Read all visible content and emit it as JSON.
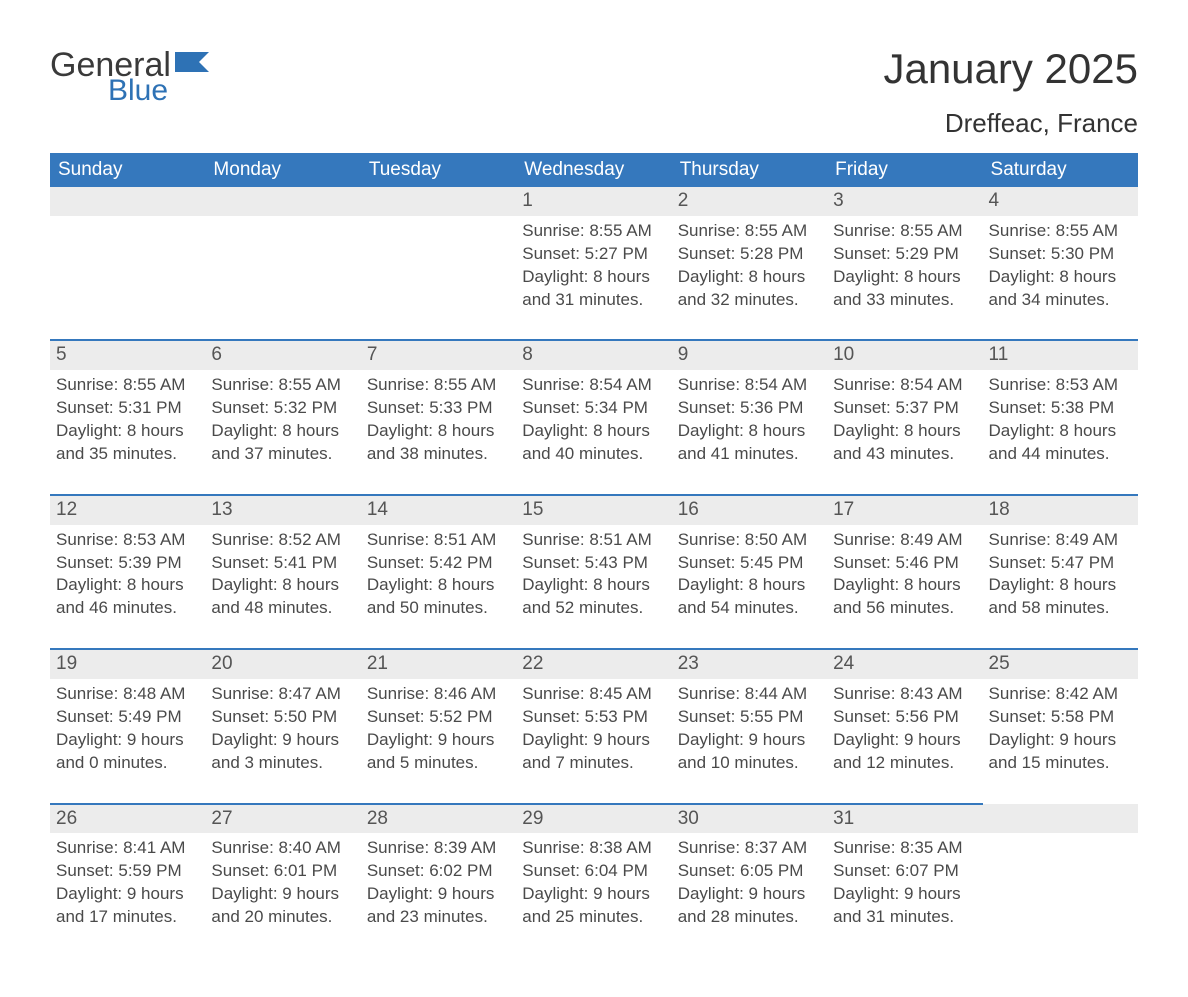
{
  "brand": {
    "general": "General",
    "blue": "Blue"
  },
  "colors": {
    "header_bg": "#3578bd",
    "header_text": "#ffffff",
    "daynum_bg": "#ececec",
    "row_border": "#3578bd",
    "body_text": "#4a4a4a",
    "brand_blue": "#2e72b5",
    "page_bg": "#ffffff"
  },
  "fonts": {
    "family": "Arial",
    "title_size_pt": 42,
    "location_size_pt": 26,
    "header_size_pt": 19,
    "daynum_size_pt": 19,
    "cell_size_pt": 17
  },
  "title": "January 2025",
  "location": "Dreffeac, France",
  "weekdays": [
    "Sunday",
    "Monday",
    "Tuesday",
    "Wednesday",
    "Thursday",
    "Friday",
    "Saturday"
  ],
  "weeks": [
    [
      null,
      null,
      null,
      {
        "day": "1",
        "sunrise": "Sunrise: 8:55 AM",
        "sunset": "Sunset: 5:27 PM",
        "dl1": "Daylight: 8 hours",
        "dl2": "and 31 minutes."
      },
      {
        "day": "2",
        "sunrise": "Sunrise: 8:55 AM",
        "sunset": "Sunset: 5:28 PM",
        "dl1": "Daylight: 8 hours",
        "dl2": "and 32 minutes."
      },
      {
        "day": "3",
        "sunrise": "Sunrise: 8:55 AM",
        "sunset": "Sunset: 5:29 PM",
        "dl1": "Daylight: 8 hours",
        "dl2": "and 33 minutes."
      },
      {
        "day": "4",
        "sunrise": "Sunrise: 8:55 AM",
        "sunset": "Sunset: 5:30 PM",
        "dl1": "Daylight: 8 hours",
        "dl2": "and 34 minutes."
      }
    ],
    [
      {
        "day": "5",
        "sunrise": "Sunrise: 8:55 AM",
        "sunset": "Sunset: 5:31 PM",
        "dl1": "Daylight: 8 hours",
        "dl2": "and 35 minutes."
      },
      {
        "day": "6",
        "sunrise": "Sunrise: 8:55 AM",
        "sunset": "Sunset: 5:32 PM",
        "dl1": "Daylight: 8 hours",
        "dl2": "and 37 minutes."
      },
      {
        "day": "7",
        "sunrise": "Sunrise: 8:55 AM",
        "sunset": "Sunset: 5:33 PM",
        "dl1": "Daylight: 8 hours",
        "dl2": "and 38 minutes."
      },
      {
        "day": "8",
        "sunrise": "Sunrise: 8:54 AM",
        "sunset": "Sunset: 5:34 PM",
        "dl1": "Daylight: 8 hours",
        "dl2": "and 40 minutes."
      },
      {
        "day": "9",
        "sunrise": "Sunrise: 8:54 AM",
        "sunset": "Sunset: 5:36 PM",
        "dl1": "Daylight: 8 hours",
        "dl2": "and 41 minutes."
      },
      {
        "day": "10",
        "sunrise": "Sunrise: 8:54 AM",
        "sunset": "Sunset: 5:37 PM",
        "dl1": "Daylight: 8 hours",
        "dl2": "and 43 minutes."
      },
      {
        "day": "11",
        "sunrise": "Sunrise: 8:53 AM",
        "sunset": "Sunset: 5:38 PM",
        "dl1": "Daylight: 8 hours",
        "dl2": "and 44 minutes."
      }
    ],
    [
      {
        "day": "12",
        "sunrise": "Sunrise: 8:53 AM",
        "sunset": "Sunset: 5:39 PM",
        "dl1": "Daylight: 8 hours",
        "dl2": "and 46 minutes."
      },
      {
        "day": "13",
        "sunrise": "Sunrise: 8:52 AM",
        "sunset": "Sunset: 5:41 PM",
        "dl1": "Daylight: 8 hours",
        "dl2": "and 48 minutes."
      },
      {
        "day": "14",
        "sunrise": "Sunrise: 8:51 AM",
        "sunset": "Sunset: 5:42 PM",
        "dl1": "Daylight: 8 hours",
        "dl2": "and 50 minutes."
      },
      {
        "day": "15",
        "sunrise": "Sunrise: 8:51 AM",
        "sunset": "Sunset: 5:43 PM",
        "dl1": "Daylight: 8 hours",
        "dl2": "and 52 minutes."
      },
      {
        "day": "16",
        "sunrise": "Sunrise: 8:50 AM",
        "sunset": "Sunset: 5:45 PM",
        "dl1": "Daylight: 8 hours",
        "dl2": "and 54 minutes."
      },
      {
        "day": "17",
        "sunrise": "Sunrise: 8:49 AM",
        "sunset": "Sunset: 5:46 PM",
        "dl1": "Daylight: 8 hours",
        "dl2": "and 56 minutes."
      },
      {
        "day": "18",
        "sunrise": "Sunrise: 8:49 AM",
        "sunset": "Sunset: 5:47 PM",
        "dl1": "Daylight: 8 hours",
        "dl2": "and 58 minutes."
      }
    ],
    [
      {
        "day": "19",
        "sunrise": "Sunrise: 8:48 AM",
        "sunset": "Sunset: 5:49 PM",
        "dl1": "Daylight: 9 hours",
        "dl2": "and 0 minutes."
      },
      {
        "day": "20",
        "sunrise": "Sunrise: 8:47 AM",
        "sunset": "Sunset: 5:50 PM",
        "dl1": "Daylight: 9 hours",
        "dl2": "and 3 minutes."
      },
      {
        "day": "21",
        "sunrise": "Sunrise: 8:46 AM",
        "sunset": "Sunset: 5:52 PM",
        "dl1": "Daylight: 9 hours",
        "dl2": "and 5 minutes."
      },
      {
        "day": "22",
        "sunrise": "Sunrise: 8:45 AM",
        "sunset": "Sunset: 5:53 PM",
        "dl1": "Daylight: 9 hours",
        "dl2": "and 7 minutes."
      },
      {
        "day": "23",
        "sunrise": "Sunrise: 8:44 AM",
        "sunset": "Sunset: 5:55 PM",
        "dl1": "Daylight: 9 hours",
        "dl2": "and 10 minutes."
      },
      {
        "day": "24",
        "sunrise": "Sunrise: 8:43 AM",
        "sunset": "Sunset: 5:56 PM",
        "dl1": "Daylight: 9 hours",
        "dl2": "and 12 minutes."
      },
      {
        "day": "25",
        "sunrise": "Sunrise: 8:42 AM",
        "sunset": "Sunset: 5:58 PM",
        "dl1": "Daylight: 9 hours",
        "dl2": "and 15 minutes."
      }
    ],
    [
      {
        "day": "26",
        "sunrise": "Sunrise: 8:41 AM",
        "sunset": "Sunset: 5:59 PM",
        "dl1": "Daylight: 9 hours",
        "dl2": "and 17 minutes."
      },
      {
        "day": "27",
        "sunrise": "Sunrise: 8:40 AM",
        "sunset": "Sunset: 6:01 PM",
        "dl1": "Daylight: 9 hours",
        "dl2": "and 20 minutes."
      },
      {
        "day": "28",
        "sunrise": "Sunrise: 8:39 AM",
        "sunset": "Sunset: 6:02 PM",
        "dl1": "Daylight: 9 hours",
        "dl2": "and 23 minutes."
      },
      {
        "day": "29",
        "sunrise": "Sunrise: 8:38 AM",
        "sunset": "Sunset: 6:04 PM",
        "dl1": "Daylight: 9 hours",
        "dl2": "and 25 minutes."
      },
      {
        "day": "30",
        "sunrise": "Sunrise: 8:37 AM",
        "sunset": "Sunset: 6:05 PM",
        "dl1": "Daylight: 9 hours",
        "dl2": "and 28 minutes."
      },
      {
        "day": "31",
        "sunrise": "Sunrise: 8:35 AM",
        "sunset": "Sunset: 6:07 PM",
        "dl1": "Daylight: 9 hours",
        "dl2": "and 31 minutes."
      },
      null
    ]
  ]
}
